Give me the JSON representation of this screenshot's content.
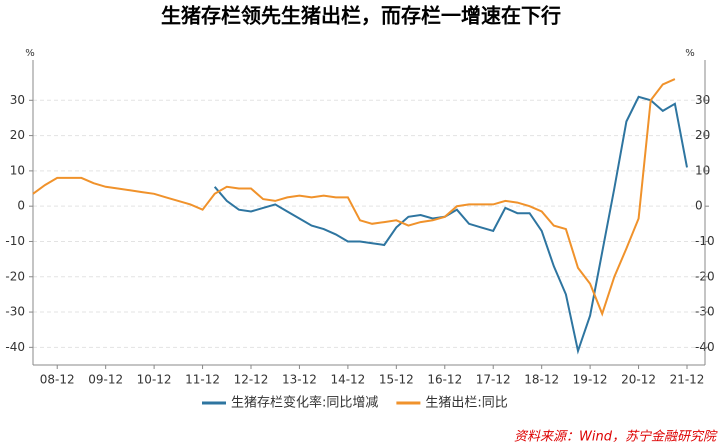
{
  "chart_data": {
    "type": "line",
    "title": "生猪存栏领先生猪出栏，而存栏一增速在下行",
    "y_unit": "%",
    "y2_unit": "%",
    "source": "资料来源：Wind，苏宁金融研究院",
    "x": [
      "08-06",
      "08-09",
      "08-12",
      "09-03",
      "09-06",
      "09-09",
      "09-12",
      "10-03",
      "10-06",
      "10-09",
      "10-12",
      "11-03",
      "11-06",
      "11-09",
      "11-12",
      "12-03",
      "12-06",
      "12-09",
      "12-12",
      "13-03",
      "13-06",
      "13-09",
      "13-12",
      "14-03",
      "14-06",
      "14-09",
      "14-12",
      "15-03",
      "15-06",
      "15-09",
      "15-12",
      "16-03",
      "16-06",
      "16-09",
      "16-12",
      "17-03",
      "17-06",
      "17-09",
      "17-12",
      "18-03",
      "18-06",
      "18-09",
      "18-12",
      "19-03",
      "19-06",
      "19-09",
      "19-12",
      "20-03",
      "20-06",
      "20-09",
      "20-12",
      "21-03",
      "21-06",
      "21-09",
      "21-12"
    ],
    "series": [
      {
        "name": "生猪存栏变化率:同比增减",
        "color": "#2e75a0",
        "values": [
          null,
          null,
          null,
          null,
          null,
          null,
          null,
          null,
          null,
          null,
          null,
          null,
          null,
          null,
          null,
          5.5,
          1.5,
          -1,
          -1.5,
          -0.5,
          0.5,
          -1.5,
          -3.5,
          -5.5,
          -6.5,
          -8,
          -10,
          -10,
          -10.5,
          -11,
          -6,
          -3,
          -2.5,
          -3.5,
          -3,
          -1,
          -5,
          -6,
          -7,
          -0.5,
          -2,
          -2,
          -7,
          -17,
          -25,
          -41,
          -31,
          -13,
          5,
          24,
          31,
          30,
          27,
          29,
          11
        ]
      },
      {
        "name": "生猪出栏:同比",
        "color": "#f0922b",
        "values": [
          3.5,
          6,
          8,
          8,
          8,
          6.5,
          5.5,
          5,
          4.5,
          4,
          3.5,
          2.5,
          1.5,
          0.5,
          -1,
          3.5,
          5.5,
          5,
          5,
          2,
          1.5,
          2.5,
          3,
          2.5,
          3,
          2.5,
          2.5,
          -4,
          -5,
          -4.5,
          -4,
          -5.5,
          -4.5,
          -4,
          -3,
          0,
          0.5,
          0.5,
          0.5,
          1.5,
          1,
          0,
          -1.5,
          -5.5,
          -6.5,
          -17.5,
          -22,
          -30.5,
          -20,
          -12,
          -3.5,
          30,
          34.5,
          36,
          null
        ]
      }
    ],
    "ylim": [
      -45,
      40
    ],
    "yticks": [
      30,
      20,
      10,
      0,
      -10,
      -20,
      -30,
      -40
    ],
    "y2lim": [
      -45,
      40
    ],
    "y2ticks": [
      30,
      20,
      10,
      0,
      -10,
      -20,
      -30,
      -40
    ],
    "grid": true,
    "legend": "bottom"
  }
}
